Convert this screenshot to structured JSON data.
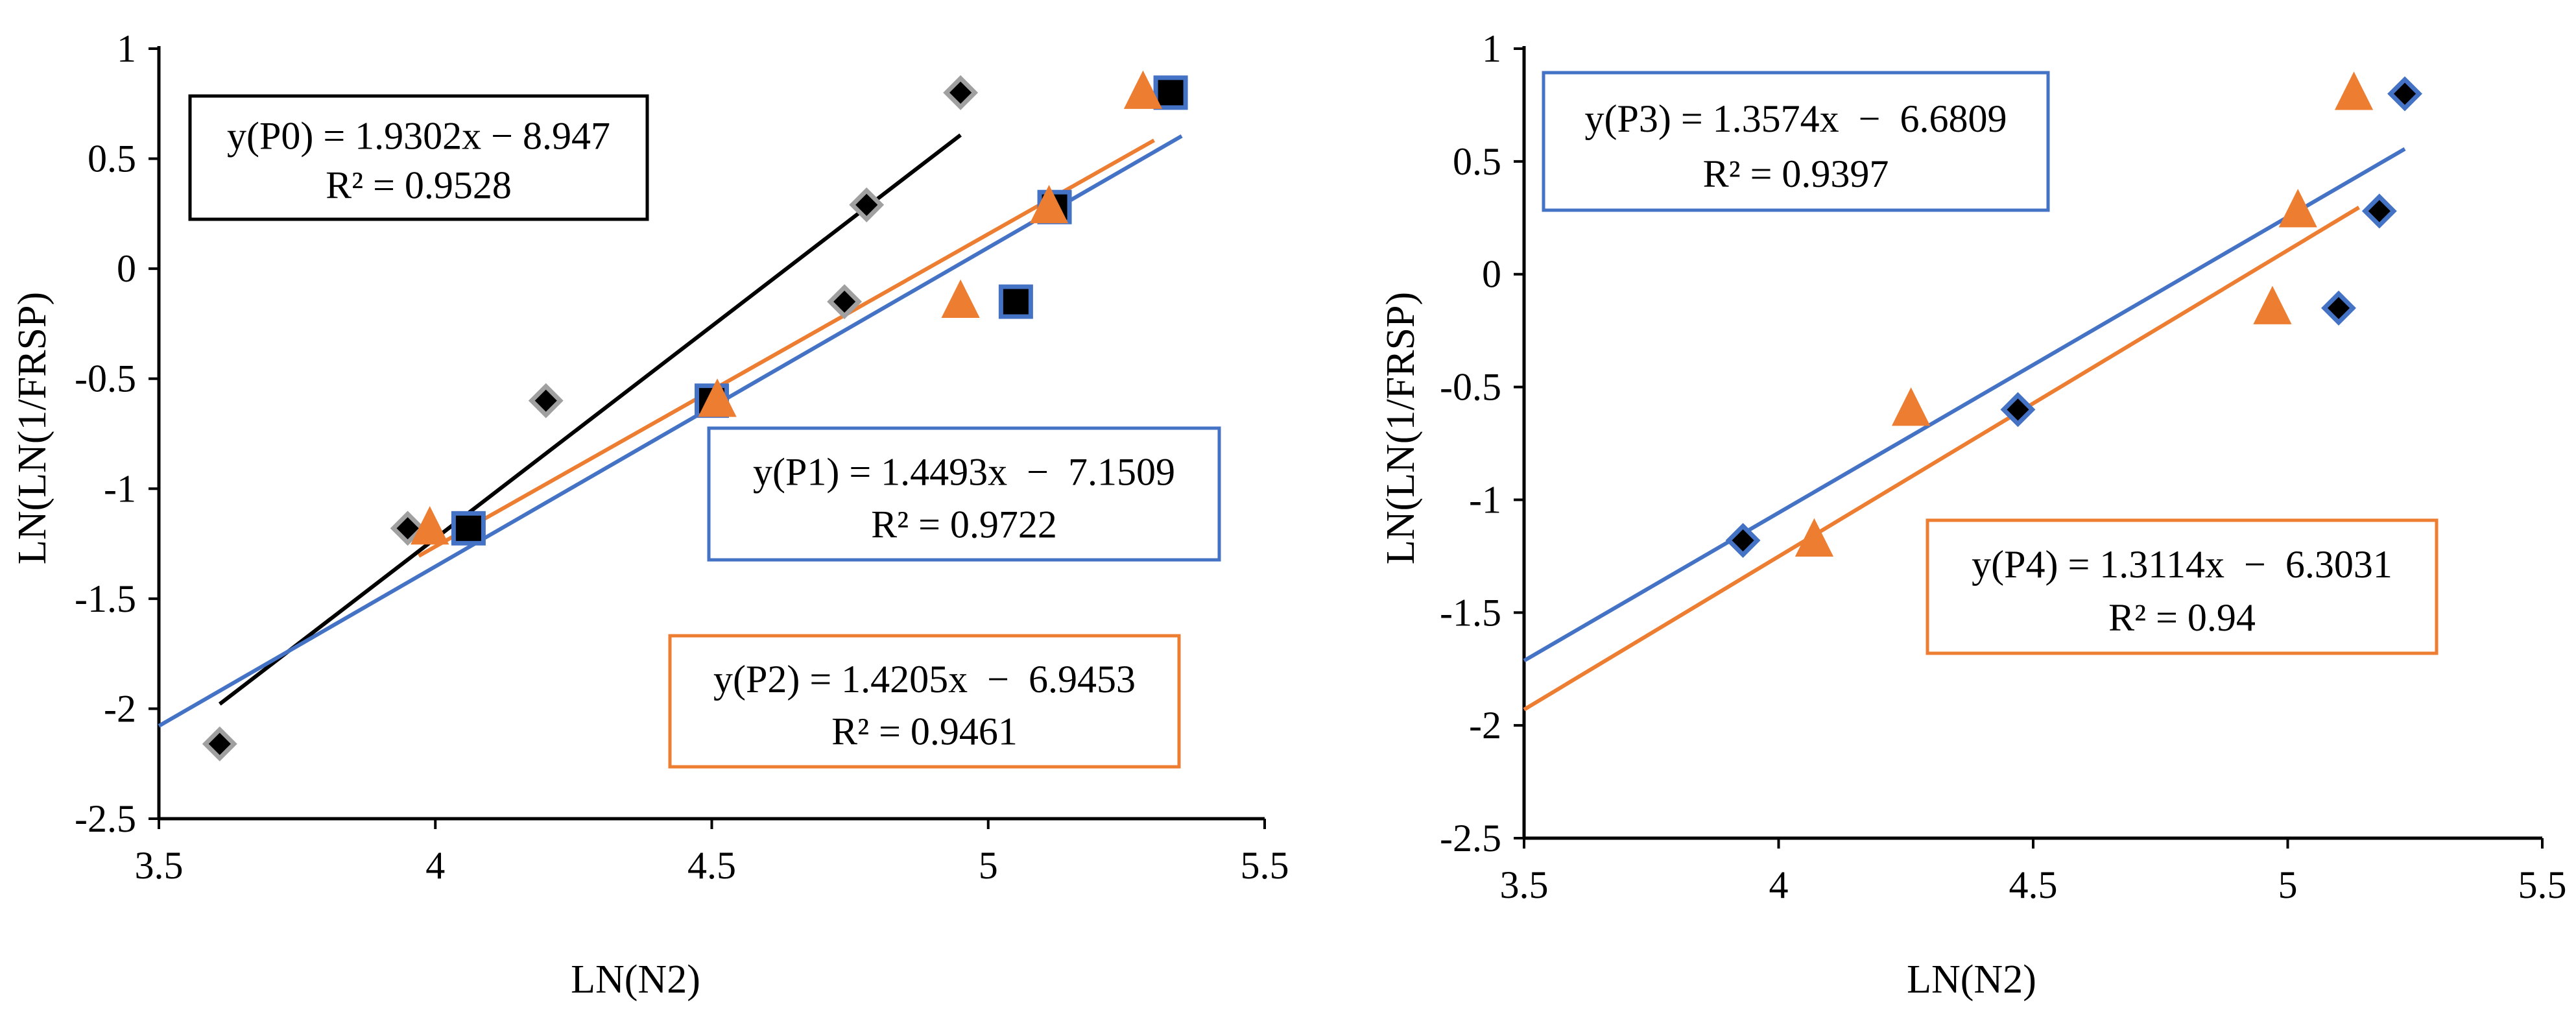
{
  "chart_data": [
    {
      "type": "scatter",
      "xlabel": "LN(N2)",
      "ylabel": "LN(LN(1/FRSP)",
      "xlim": [
        3.5,
        5.5
      ],
      "ylim": [
        -2.5,
        1
      ],
      "x_ticks": [
        "3.5",
        "4",
        "4.5",
        "5",
        "5.5"
      ],
      "y_ticks": [
        "1",
        "0.5",
        "0",
        "-0.5",
        "-1",
        "-1.5",
        "-2",
        "-2.5"
      ],
      "series": [
        {
          "name": "P0",
          "marker": "diamond",
          "color": "#000000",
          "edge": "#a0a0a0",
          "line_color": "#000000",
          "points": [
            [
              3.61,
              -2.16
            ],
            [
              3.95,
              -1.18
            ],
            [
              4.2,
              -0.6
            ],
            [
              4.74,
              -0.15
            ],
            [
              4.78,
              0.29
            ],
            [
              4.95,
              0.8
            ]
          ],
          "fit": {
            "slope": 1.9302,
            "intercept": -8.947,
            "x_range": [
              3.61,
              4.95
            ]
          },
          "equation": "y(P0) = 1.9302x − 8.947",
          "r2": "R² = 0.9528"
        },
        {
          "name": "P1",
          "marker": "square",
          "color": "#000000",
          "edge": "#4472c4",
          "line_color": "#4472c4",
          "points": [
            [
              4.06,
              -1.18
            ],
            [
              4.5,
              -0.6
            ],
            [
              5.05,
              -0.15
            ],
            [
              5.12,
              0.28
            ],
            [
              5.33,
              0.8
            ]
          ],
          "fit": {
            "slope": 1.4493,
            "intercept": -7.1509,
            "x_range": [
              3.5,
              5.35
            ]
          },
          "equation": "y(P1) = 1.4493x  −  7.1509",
          "r2": "R² = 0.9722"
        },
        {
          "name": "P2",
          "marker": "triangle",
          "color": "#ed7d31",
          "edge": "#ed7d31",
          "line_color": "#ed7d31",
          "points": [
            [
              3.99,
              -1.18
            ],
            [
              4.51,
              -0.6
            ],
            [
              4.95,
              -0.15
            ],
            [
              5.11,
              0.28
            ],
            [
              5.28,
              0.8
            ]
          ],
          "fit": {
            "slope": 1.4205,
            "intercept": -6.9453,
            "x_range": [
              3.97,
              5.3
            ]
          },
          "equation": "y(P2) = 1.4205x  −  6.9453",
          "r2": "R² = 0.9461"
        }
      ]
    },
    {
      "type": "scatter",
      "xlabel": "LN(N2)",
      "ylabel": "LN(LN(1/FRSP)",
      "xlim": [
        3.5,
        5.5
      ],
      "ylim": [
        -2.5,
        1
      ],
      "x_ticks": [
        "3.5",
        "4",
        "4.5",
        "5",
        "5.5"
      ],
      "y_ticks": [
        "1",
        "0.5",
        "0",
        "-0.5",
        "-1",
        "-1.5",
        "-2",
        "-2.5"
      ],
      "series": [
        {
          "name": "P3",
          "marker": "triangle",
          "color": "#ed7d31",
          "edge": "#ed7d31",
          "line_color": "#ed7d31",
          "points": [
            [
              4.07,
              -1.18
            ],
            [
              4.26,
              -0.6
            ],
            [
              4.97,
              -0.15
            ],
            [
              5.02,
              0.28
            ],
            [
              5.13,
              0.8
            ]
          ],
          "fit": {
            "slope": 1.3574,
            "intercept": -6.6809,
            "x_range": [
              3.5,
              5.14
            ]
          },
          "equation": "y(P3) = 1.3574x  −  6.6809",
          "r2": "R² = 0.9397"
        },
        {
          "name": "P4",
          "marker": "diamond",
          "color": "#000000",
          "edge": "#4472c4",
          "line_color": "#4472c4",
          "points": [
            [
              3.93,
              -1.18
            ],
            [
              4.47,
              -0.6
            ],
            [
              5.1,
              -0.15
            ],
            [
              5.18,
              0.28
            ],
            [
              5.23,
              0.8
            ]
          ],
          "fit": {
            "slope": 1.3114,
            "intercept": -6.3031,
            "x_range": [
              3.5,
              5.23
            ]
          },
          "equation": "y(P4) = 1.3114x  −  6.3031",
          "r2": "R² = 0.94"
        }
      ]
    }
  ]
}
